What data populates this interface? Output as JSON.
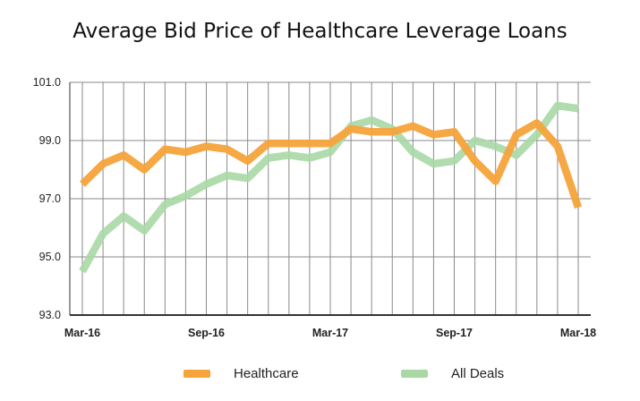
{
  "chart_data": {
    "type": "line",
    "title": "Average Bid Price of Healthcare Leverage Loans",
    "xlabel": "",
    "ylabel": "",
    "ylim": [
      93.0,
      101.0
    ],
    "yticks": [
      "93.0",
      "95.0",
      "97.0",
      "99.0",
      "101.0"
    ],
    "xtick_labels": [
      "Mar-16",
      "Sep-16",
      "Mar-17",
      "Sep-17",
      "Mar-18"
    ],
    "x": [
      "Mar-16",
      "Apr-16",
      "May-16",
      "Jun-16",
      "Jul-16",
      "Aug-16",
      "Sep-16",
      "Oct-16",
      "Nov-16",
      "Dec-16",
      "Jan-17",
      "Feb-17",
      "Mar-17",
      "Apr-17",
      "May-17",
      "Jun-17",
      "Jul-17",
      "Aug-17",
      "Sep-17",
      "Oct-17",
      "Nov-17",
      "Dec-17",
      "Jan-18",
      "Feb-18",
      "Mar-18"
    ],
    "grid": true,
    "legend_position": "bottom",
    "series": [
      {
        "name": "Healthcare",
        "color": "#F5A33A",
        "values": [
          97.5,
          98.2,
          98.5,
          98.0,
          98.7,
          98.6,
          98.8,
          98.7,
          98.3,
          98.9,
          98.9,
          98.9,
          98.9,
          99.4,
          99.3,
          99.3,
          99.5,
          99.2,
          99.3,
          98.3,
          97.6,
          99.2,
          99.6,
          98.8,
          96.7
        ]
      },
      {
        "name": "All Deals",
        "color": "#A9D8A5",
        "values": [
          94.5,
          95.8,
          96.4,
          95.9,
          96.8,
          97.1,
          97.5,
          97.8,
          97.7,
          98.4,
          98.5,
          98.4,
          98.6,
          99.5,
          99.7,
          99.4,
          98.6,
          98.2,
          98.3,
          99.0,
          98.8,
          98.5,
          99.2,
          100.2,
          100.1
        ]
      }
    ]
  }
}
